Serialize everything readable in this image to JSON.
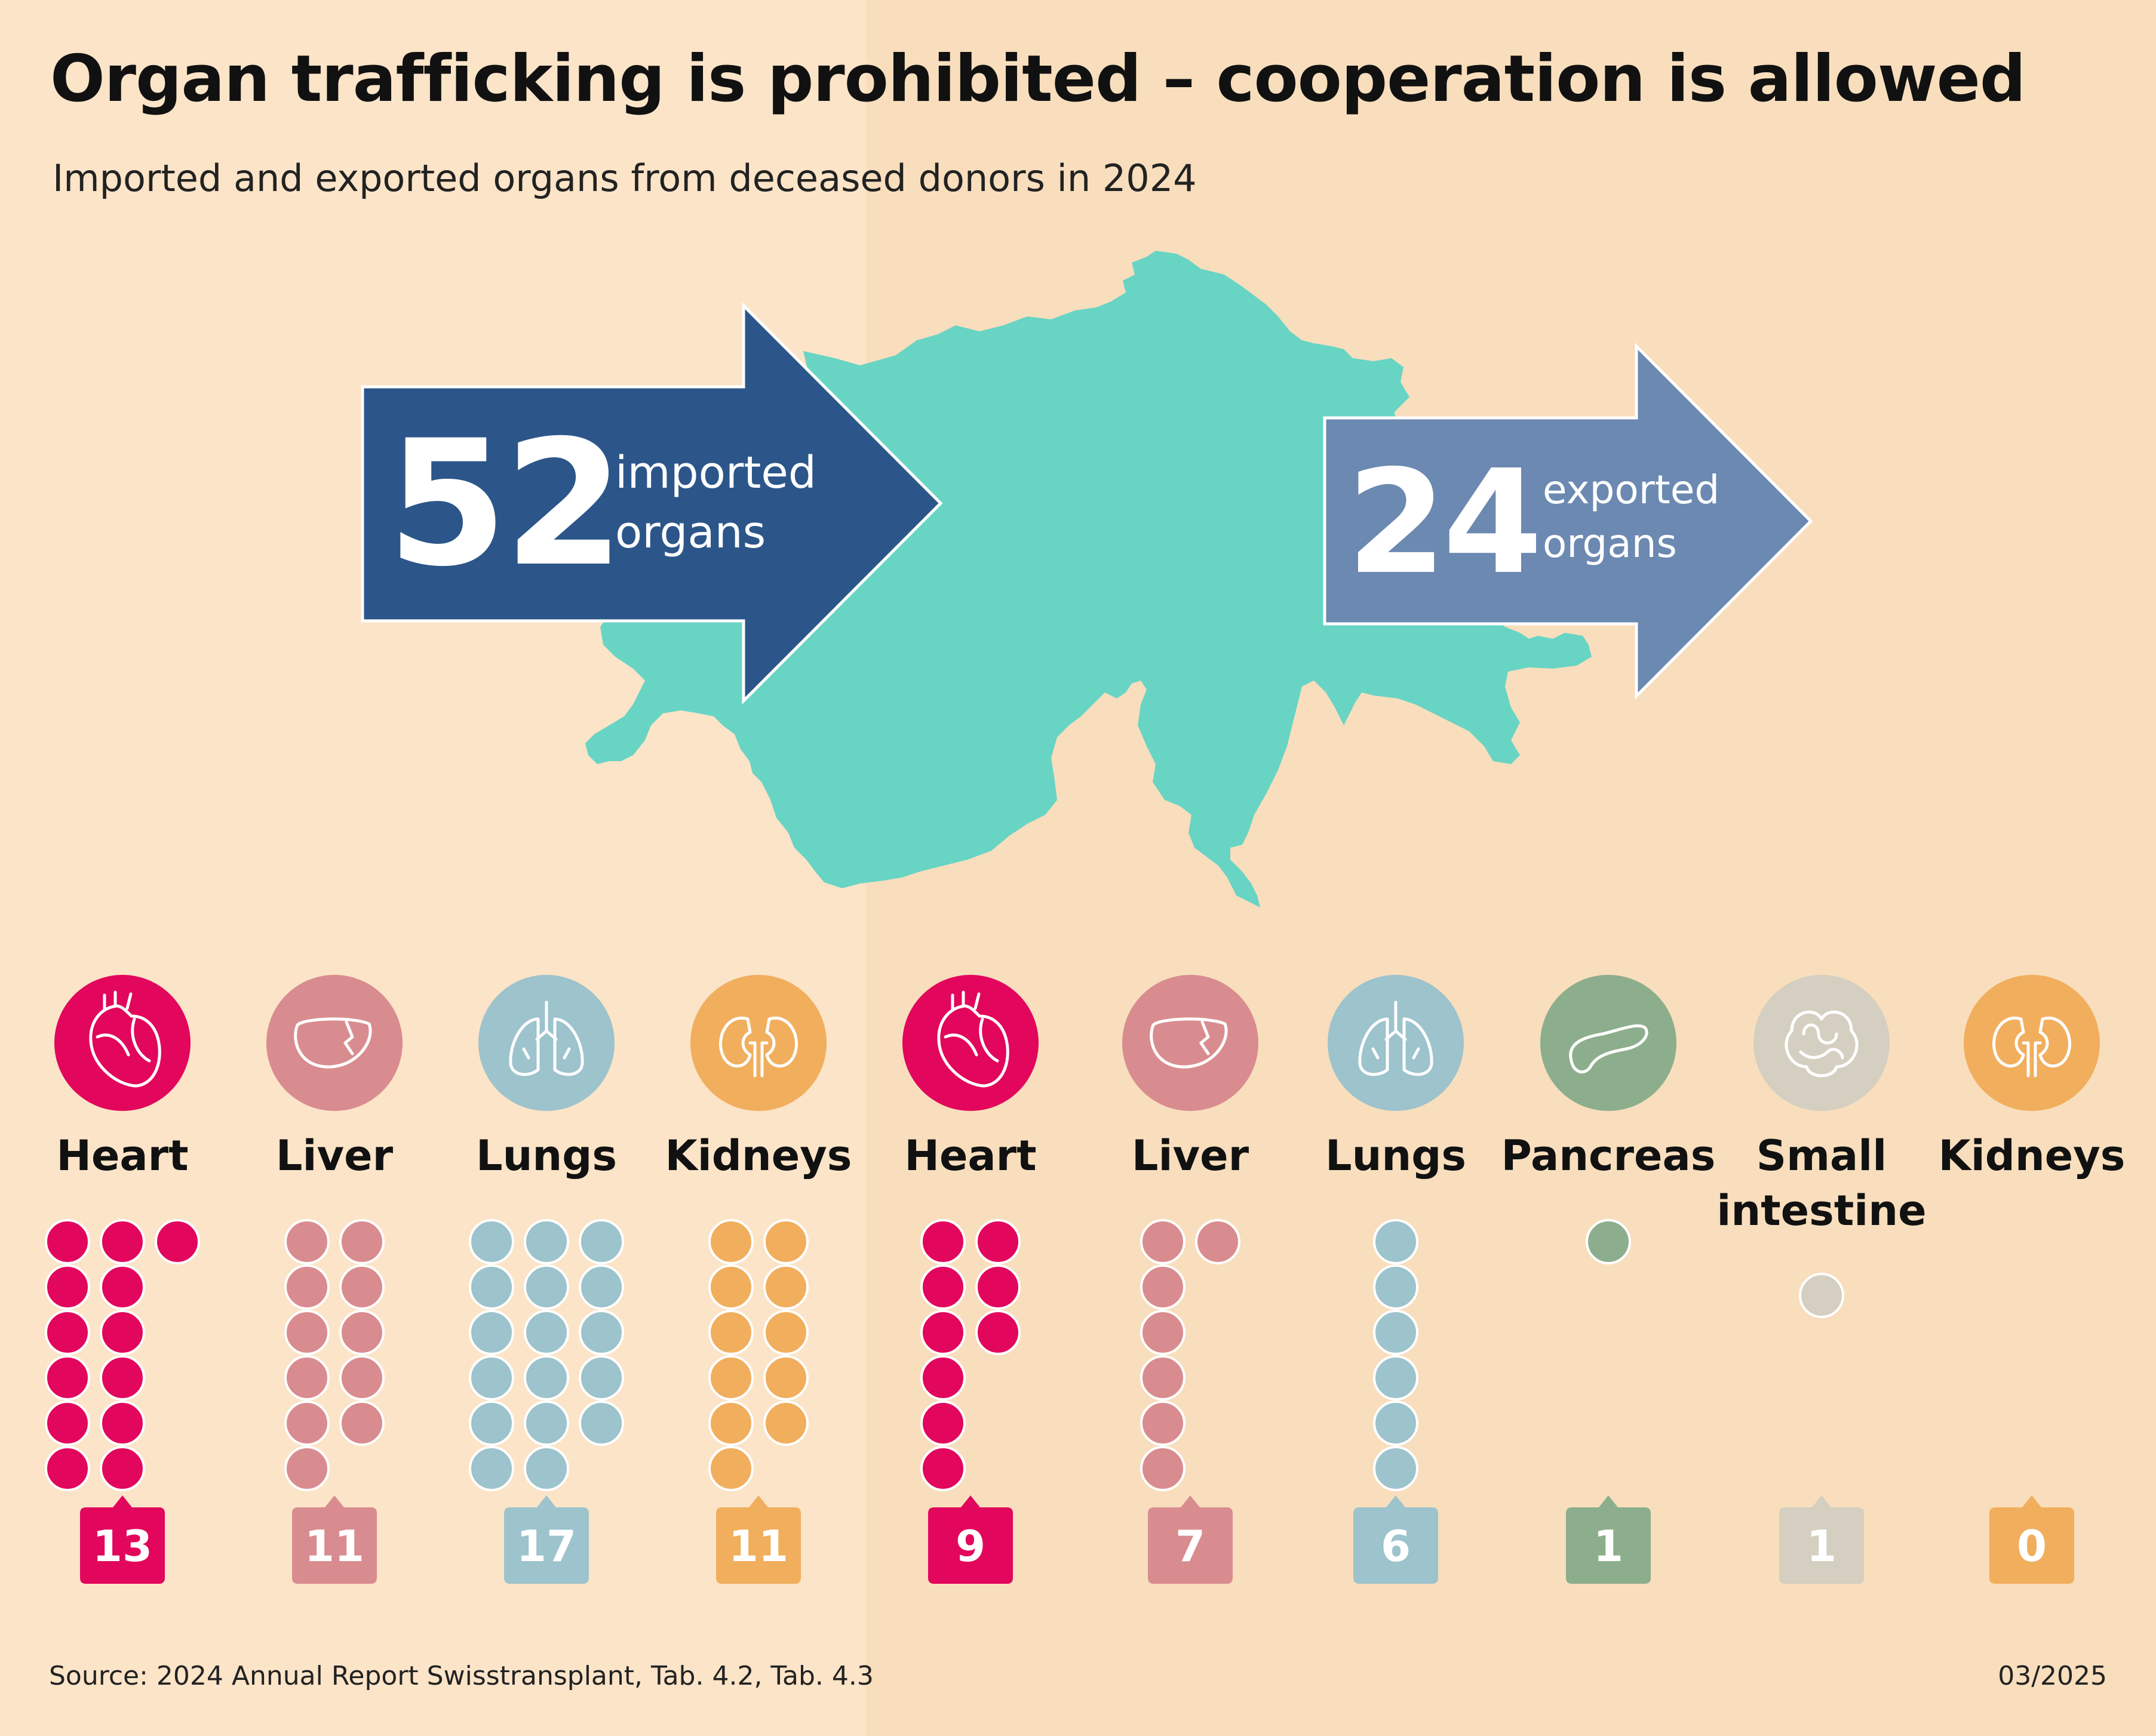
{
  "title": "Organ trafficking is prohibited – cooperation is allowed",
  "subtitle": "Imported and exported organs from deceased donors in 2024",
  "imported": {
    "number": "52",
    "line1": "imported",
    "line2": "organs"
  },
  "exported": {
    "number": "24",
    "line1": "exported",
    "line2": "organs"
  },
  "colors": {
    "heart": "#e2065c",
    "liver": "#d98c8f",
    "lungs": "#9dc3cc",
    "kidneys": "#f1ae5d",
    "pancreas": "#8cae8c",
    "small_intestine": "#d4cfc0",
    "import_arrow": "#2c5689",
    "export_arrow": "#6b89b1",
    "map": "#68d4c4"
  },
  "chart_data": {
    "type": "bar",
    "title": "Organ trafficking is prohibited – cooperation is allowed",
    "subtitle": "Imported and exported organs from deceased donors in 2024",
    "groups": [
      {
        "name": "imported organs",
        "total": 52
      },
      {
        "name": "exported organs",
        "total": 24
      }
    ],
    "categories": [
      {
        "label": "Heart",
        "value": 13,
        "group": "imported organs",
        "color": "#e2065c",
        "icon": "heart-icon"
      },
      {
        "label": "Liver",
        "value": 11,
        "group": "imported organs",
        "color": "#d98c8f",
        "icon": "liver-icon"
      },
      {
        "label": "Lungs",
        "value": 17,
        "group": "imported organs",
        "color": "#9dc3cc",
        "icon": "lungs-icon"
      },
      {
        "label": "Kidneys",
        "value": 11,
        "group": "imported organs",
        "color": "#f1ae5d",
        "icon": "kidneys-icon"
      },
      {
        "label": "Heart",
        "value": 9,
        "group": "exported organs",
        "color": "#e2065c",
        "icon": "heart-icon"
      },
      {
        "label": "Liver",
        "value": 7,
        "group": "exported organs",
        "color": "#d98c8f",
        "icon": "liver-icon"
      },
      {
        "label": "Lungs",
        "value": 6,
        "group": "exported organs",
        "color": "#9dc3cc",
        "icon": "lungs-icon"
      },
      {
        "label": "Pancreas",
        "value": 1,
        "group": "exported organs",
        "color": "#8cae8c",
        "icon": "pancreas-icon"
      },
      {
        "label": "Small intestine",
        "value": 1,
        "group": "exported organs",
        "color": "#d4cfc0",
        "icon": "small-intestine-icon"
      },
      {
        "label": "Kidneys",
        "value": 0,
        "group": "exported organs",
        "color": "#f1ae5d",
        "icon": "kidneys-icon"
      }
    ]
  },
  "source": "Source: 2024 Annual Report Swisstransplant, Tab. 4.2, Tab. 4.3",
  "date": "03/2025"
}
